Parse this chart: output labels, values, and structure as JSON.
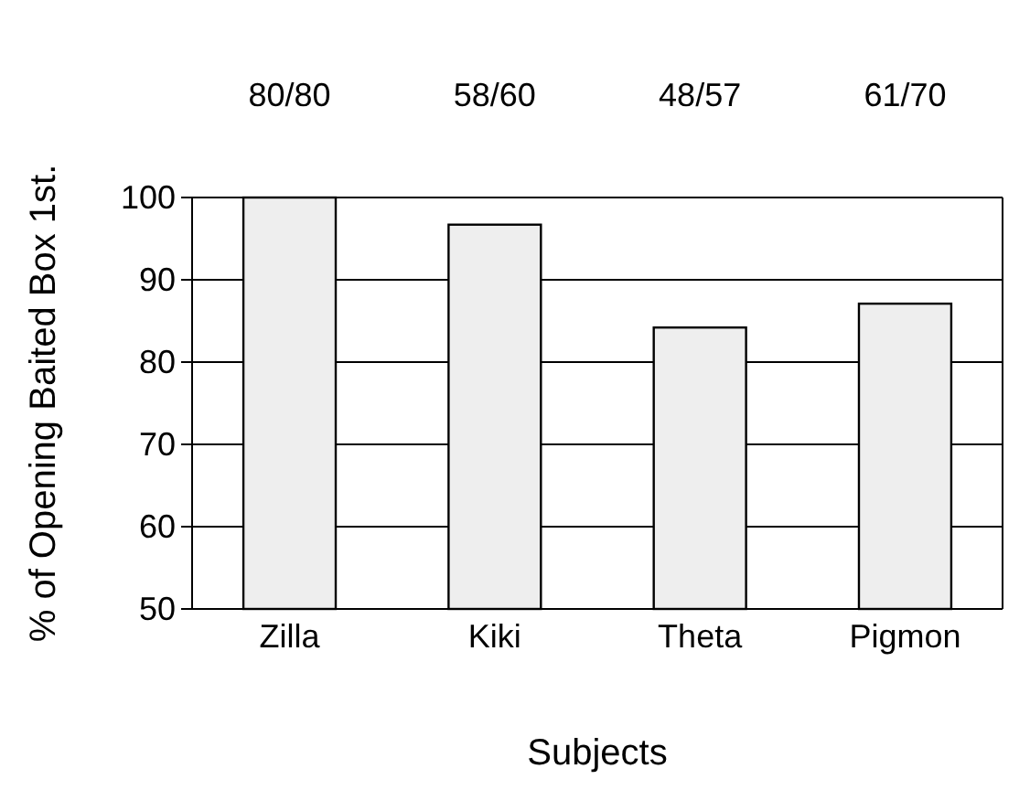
{
  "chart_data": {
    "type": "bar",
    "xlabel": "Subjects",
    "ylabel": "% of Opening Baited Box 1st.",
    "categories": [
      "Zilla",
      "Kiki",
      "Theta",
      "Pigmon"
    ],
    "values": [
      100,
      96.7,
      84.2,
      87.1
    ],
    "value_labels": [
      "80/80",
      "58/60",
      "48/57",
      "61/70"
    ],
    "color": "#eeeeee",
    "ylim": [
      50,
      100
    ],
    "yticks": [
      50,
      60,
      70,
      80,
      90,
      100
    ],
    "grid": "y"
  }
}
